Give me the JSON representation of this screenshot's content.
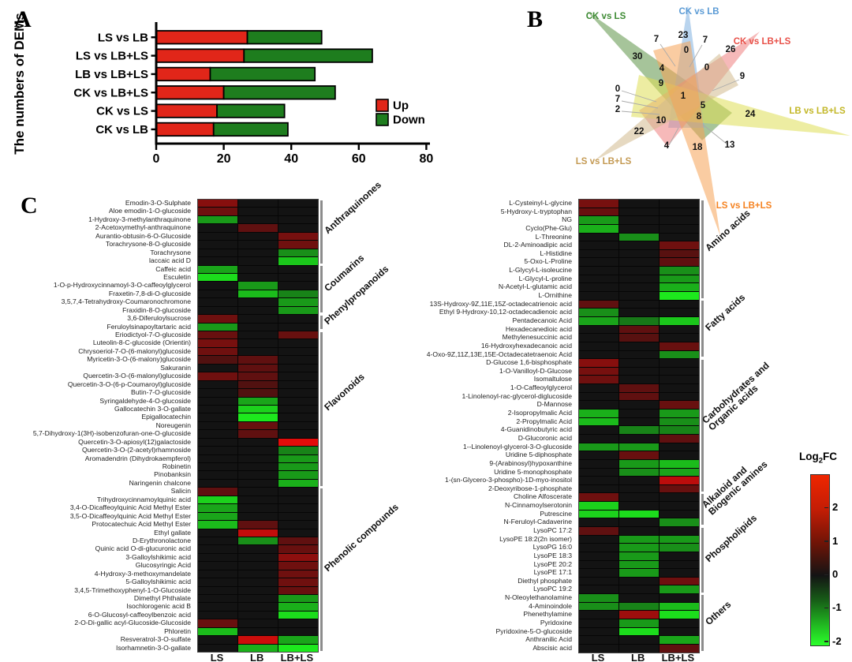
{
  "panels": {
    "a_letter": "A",
    "b_letter": "B",
    "c_letter": "C"
  },
  "chart_data": [
    {
      "type": "bar",
      "orientation": "horizontal-stacked",
      "ylabel": "The numbers of DEMs",
      "categories": [
        "LS vs LB",
        "LS vs LB+LS",
        "LB vs LB+LS",
        "CK vs LB+LS",
        "CK vs LS",
        "CK vs LB"
      ],
      "series": [
        {
          "name": "Up",
          "color": "#e12619",
          "values": [
            27,
            26,
            16,
            20,
            18,
            17
          ]
        },
        {
          "name": "Down",
          "color": "#1e7d1e",
          "values": [
            22,
            38,
            31,
            33,
            20,
            22
          ]
        }
      ],
      "xlim": [
        0,
        80
      ],
      "x_ticks": [
        0,
        20,
        40,
        60,
        80
      ],
      "legend_position": "right-inside"
    },
    {
      "type": "venn6-star",
      "sets": [
        {
          "name": "CK vs LS",
          "fill": "#5d9447",
          "label_color": "#3d8a33",
          "lx": 108,
          "ly": 24,
          "anchor": "middle"
        },
        {
          "name": "CK vs LB",
          "fill": "#7fb1e0",
          "label_color": "#5b9bd5",
          "lx": 226,
          "ly": 18,
          "anchor": "middle"
        },
        {
          "name": "CK vs LB+LS",
          "fill": "#ee8080",
          "label_color": "#e85048",
          "lx": 306,
          "ly": 56,
          "anchor": "middle"
        },
        {
          "name": "LB vs LB+LS",
          "fill": "#dede55",
          "label_color": "#c3b727",
          "lx": 376,
          "ly": 144,
          "anchor": "middle"
        },
        {
          "name": "LS vs LB+LS",
          "fill": "#d2ba8e",
          "label_color": "#c49a53",
          "lx": 105,
          "ly": 208,
          "anchor": "middle"
        },
        {
          "name": "LS vs LB+LS",
          "fill": "#f6a256",
          "label_color": "#f58220",
          "lx": 283,
          "ly": 264,
          "anchor": "middle"
        }
      ],
      "region_counts": [
        {
          "v": "7",
          "x": 172,
          "y": 53
        },
        {
          "v": "23",
          "x": 206,
          "y": 48
        },
        {
          "v": "7",
          "x": 234,
          "y": 54
        },
        {
          "v": "26",
          "x": 266,
          "y": 66
        },
        {
          "v": "30",
          "x": 148,
          "y": 75
        },
        {
          "v": "0",
          "x": 210,
          "y": 67
        },
        {
          "v": "4",
          "x": 179,
          "y": 90
        },
        {
          "v": "0",
          "x": 236,
          "y": 89
        },
        {
          "v": "9",
          "x": 178,
          "y": 109
        },
        {
          "v": "9",
          "x": 281,
          "y": 100
        },
        {
          "v": "0",
          "x": 123,
          "y": 116
        },
        {
          "v": "7",
          "x": 123,
          "y": 129
        },
        {
          "v": "2",
          "x": 123,
          "y": 142
        },
        {
          "v": "1",
          "x": 206,
          "y": 125
        },
        {
          "v": "5",
          "x": 231,
          "y": 137
        },
        {
          "v": "24",
          "x": 291,
          "y": 148
        },
        {
          "v": "8",
          "x": 226,
          "y": 151
        },
        {
          "v": "10",
          "x": 178,
          "y": 156
        },
        {
          "v": "22",
          "x": 150,
          "y": 170
        },
        {
          "v": "4",
          "x": 185,
          "y": 188
        },
        {
          "v": "18",
          "x": 224,
          "y": 190
        },
        {
          "v": "13",
          "x": 265,
          "y": 187
        }
      ]
    },
    {
      "type": "heatmap",
      "id": "left",
      "columns": [
        "LS",
        "LB",
        "LB+LS"
      ],
      "categories": [
        {
          "name": "Anthraquinones",
          "lines": [
            "Anthraquinones"
          ],
          "rows": [
            [
              "Emodin-3-O-Sulphate",
              1.5,
              0,
              0
            ],
            [
              "Aloe emodin-1-O-glucoside",
              1.2,
              0,
              0
            ],
            [
              "1-Hydroxy-3-methylanthraquinone",
              -1.2,
              0,
              0
            ],
            [
              "2-Acetoxymethyl-anthraquinone",
              0,
              1.0,
              0
            ],
            [
              "Aurantio-obtusin-6-O-Glucoside",
              0,
              0,
              1.3
            ],
            [
              "Torachrysone-8-O-glucoside",
              0,
              0,
              1.2
            ],
            [
              "Torachrysone",
              0,
              0,
              -1.1
            ],
            [
              "laccaic acid D",
              0,
              0,
              -1.6
            ]
          ]
        },
        {
          "name": "Coumarins",
          "lines": [
            "Coumarins"
          ],
          "rows": [
            [
              "Caffeic acid",
              -1.3,
              0,
              0
            ],
            [
              "Esculetin",
              -1.8,
              0,
              0
            ],
            [
              "1-O-p-Hydroxycinnamoyl-3-O-caffeoylglycerol",
              0,
              -1.2,
              0
            ],
            [
              "Fraxetin-7,8-di-O-glucoside",
              0,
              -1.5,
              -1.0
            ],
            [
              "3,5,7,4-Tetrahydroxy-Coumaronochromone",
              0,
              0,
              -1.2
            ],
            [
              "Fraxidin-8-O-glucoside",
              0,
              0,
              -1.2
            ]
          ]
        },
        {
          "name": "Phenylpropanoids",
          "lines": [
            "Phenylpropanoids"
          ],
          "rows": [
            [
              "3,6-Diferuloylsucrose",
              1.2,
              0,
              0
            ],
            [
              "Feruloylsinapoyltartaric acid",
              -1.2,
              0,
              0
            ]
          ]
        },
        {
          "name": "Flavonoids",
          "lines": [
            "Flavonoids"
          ],
          "rows": [
            [
              "Eriodictyol-7-O-glucoside",
              1.1,
              0,
              1.1
            ],
            [
              "Luteolin-8-C-glucoside (Orientin)",
              1.3,
              0,
              0
            ],
            [
              "Chrysoeriol-7-O-(6-malonyl)glucoside",
              1.2,
              0,
              0
            ],
            [
              "Myricetin-3-O-(6-malony)glucoside",
              0.8,
              1.0,
              0
            ],
            [
              "Sakuranin",
              0,
              1.0,
              0
            ],
            [
              "Quercetin-3-O-(6-malonyl)glucoside",
              1.2,
              1.0,
              0
            ],
            [
              "Quercetin-3-O-(6-p-Coumaroyl)glucoside",
              0,
              0.8,
              0
            ],
            [
              "Butin-7-O-glucoside",
              0,
              0.8,
              0
            ],
            [
              "Syringaldehyde-4-O-glucoside",
              0,
              -1.3,
              0
            ],
            [
              "Gallocatechin 3-O-gallate",
              0,
              -1.7,
              0
            ],
            [
              "Epigallocatechin",
              0,
              -1.9,
              0
            ],
            [
              "Noreugenin",
              0,
              1.1,
              0
            ],
            [
              "5,7-Dihydroxy-1(3H)-isobenzofuran-one-O-glucoside",
              0,
              1.0,
              0
            ],
            [
              "Quercetin-3-O-apiosyl(12)galactoside",
              0,
              0,
              2.7
            ],
            [
              "Quercetin-3-O-(2-acetyl)rhamnoside",
              0,
              0,
              -1.0
            ],
            [
              "Aromadendrin (Dihydrokaempferol)",
              0,
              0,
              -1.2
            ],
            [
              "Robinetin",
              0,
              0,
              -1.2
            ],
            [
              "Pinobanksin",
              0,
              0,
              -1.2
            ],
            [
              "Naringenin chalcone",
              0,
              0,
              -1.4
            ]
          ]
        },
        {
          "name": "Phenolic compounds",
          "lines": [
            "Phenolic compounds"
          ],
          "rows": [
            [
              "Salicin",
              1.0,
              0,
              0
            ],
            [
              "Trihydroxycinnamoylquinic acid",
              -1.7,
              0,
              0
            ],
            [
              "3,4-O-Dicaffeoylquinic Acid Methyl Ester",
              -1.3,
              0,
              0
            ],
            [
              "3,5-O-Dicaffeoylquinic Acid Methyl Ester",
              -1.3,
              0,
              0
            ],
            [
              "Protocatechuic Acid Methyl Ester",
              -1.5,
              1.0,
              0
            ],
            [
              "Ethyl gallate",
              0,
              2.3,
              0
            ],
            [
              "D-Erythronolactone",
              0,
              -1.1,
              1.0
            ],
            [
              "Quinic acid O-di-glucuronic acid",
              0,
              0,
              1.1
            ],
            [
              "3-Galloylshikimic acid",
              0,
              0,
              1.6
            ],
            [
              "Glucosyringic Acid",
              0,
              0,
              1.2
            ],
            [
              "4-Hydroxy-3-methoxymandelate",
              0,
              0,
              1.2
            ],
            [
              "5-Galloylshikimic acid",
              0,
              0,
              1.2
            ],
            [
              "3,4,5-Trimethoxyphenyl-1-O-Glucoside",
              0,
              0,
              1.1
            ],
            [
              "Dimethyl Phthalate",
              0,
              0,
              -1.2
            ],
            [
              "Isochlorogenic acid B",
              0,
              0,
              -1.4
            ],
            [
              "6-O-Glucosyl-caffeoylbenzoic acid",
              0,
              0,
              -1.8
            ],
            [
              "2-O-Di-gallic acyl-Glucoside-Glucoside",
              1.1,
              0,
              0
            ],
            [
              "Phloretin",
              -1.5,
              0,
              0
            ],
            [
              "Resveratrol-3-O-sulfate",
              0,
              2.4,
              -1.3
            ],
            [
              "Isorhamnetin-3-O-gallate",
              0,
              -1.4,
              -1.9
            ]
          ]
        }
      ]
    },
    {
      "type": "heatmap",
      "id": "right",
      "columns": [
        "LS",
        "LB",
        "LB+LS"
      ],
      "categories": [
        {
          "name": "Amino acids",
          "lines": [
            "Amino acids"
          ],
          "rows": [
            [
              "L-Cysteinyl-L-glycine",
              1.3,
              0,
              0
            ],
            [
              "5-Hydroxy-L-tryptophan",
              1.1,
              0,
              0
            ],
            [
              "NG",
              -1.2,
              0,
              0
            ],
            [
              "Cyclo(Phe-Glu)",
              -1.4,
              0,
              0
            ],
            [
              "L-Threonine",
              0,
              -1.1,
              0
            ],
            [
              "DL-2-Aminoadipic acid",
              0,
              0,
              1.2
            ],
            [
              "L-Histidine",
              0,
              0,
              0.9
            ],
            [
              "5-Oxo-L-Proline",
              0,
              0,
              1.0
            ],
            [
              "L-Glycyl-L-isoleucine",
              0,
              0,
              -1.1
            ],
            [
              "L-Glycyl-L-proline",
              0,
              0,
              -1.2
            ],
            [
              "N-Acetyl-L-glutamic acid",
              0,
              0,
              -1.4
            ],
            [
              "L-Ornithine",
              0,
              0,
              -1.9
            ]
          ]
        },
        {
          "name": "Fatty acids",
          "lines": [
            "Fatty acids"
          ],
          "rows": [
            [
              "13S-Hydroxy-9Z,11E,15Z-octadecatrienoic acid",
              1.0,
              0,
              0
            ],
            [
              "Ethyl 9-Hydroxy-10,12-octadecadienoic acid",
              -1.1,
              0,
              0
            ],
            [
              "Pentadecanoic Acid",
              -1.3,
              -0.9,
              -1.6
            ],
            [
              "Hexadecanedioic acid",
              0,
              1.0,
              0
            ],
            [
              "Methylenesuccinic acid",
              0,
              0.9,
              0
            ],
            [
              "16-Hydroxyhexadecanoic acid",
              0,
              0,
              1.1
            ],
            [
              "4-Oxo-9Z,11Z,13E,15E-Octadecatetraenoic Acid",
              0,
              0,
              -1.1
            ]
          ]
        },
        {
          "name": "Carbohydrates and Organic acids",
          "lines": [
            "Carbohydrates and",
            "Organic acids"
          ],
          "rows": [
            [
              "D-Glucose 1,6-bisphosphate",
              1.5,
              0,
              0
            ],
            [
              "1-O-Vanilloyl-D-Glucose",
              1.3,
              0,
              0
            ],
            [
              "Isomaltulose",
              1.2,
              0,
              0
            ],
            [
              "1-O-Caffeoylglycerol",
              0,
              1.0,
              0
            ],
            [
              "1-Linolenoyl-rac-glycerol-diglucoside",
              0,
              1.0,
              0
            ],
            [
              "D-Mannose",
              0,
              0,
              1.1
            ],
            [
              "2-Isopropylmalic Acid",
              -1.4,
              0,
              -1.2
            ],
            [
              "2-Propylmalic Acid",
              -1.5,
              0,
              -1.1
            ],
            [
              "4-Guanidinobutyric acid",
              0,
              -1.0,
              -1.0
            ],
            [
              "D-Glucoronic acid",
              0,
              0,
              1.0
            ],
            [
              "1--Linolenoyl-glycerol-3-O-glucoside",
              -1.2,
              -1.2,
              0
            ],
            [
              "Uridine 5-diphosphate",
              0,
              1.1,
              0
            ],
            [
              "9-(Arabinosyl)hypoxanthine",
              0,
              -1.2,
              -1.5
            ],
            [
              "Uridine 5-monophosphate",
              0,
              -1.1,
              -1.3
            ],
            [
              "1-(sn-Glycero-3-phospho)-1D-myo-inositol",
              0,
              0,
              2.2
            ],
            [
              "2-Deoxyribose-1-phosphate",
              0,
              0,
              1.1
            ]
          ]
        },
        {
          "name": "Alkaloid and Biogenic amines",
          "lines": [
            "Alkaloid and",
            "Biogenic amines"
          ],
          "rows": [
            [
              "Choline Alfoscerate",
              1.2,
              0,
              0
            ],
            [
              "N-Cinnamoylserotonin",
              -1.7,
              0,
              0
            ],
            [
              "Putrescine",
              -1.7,
              -1.8,
              0
            ],
            [
              "N-Feruloyl-Cadaverine",
              0,
              0,
              -1.1
            ]
          ]
        },
        {
          "name": "Phospholipids",
          "lines": [
            "Phospholipids"
          ],
          "rows": [
            [
              "LysoPC 17:2",
              1.0,
              0,
              0
            ],
            [
              "LysoPE 18:2(2n isomer)",
              0,
              -1.2,
              -1.2
            ],
            [
              "LysoPG 16:0",
              0,
              -1.2,
              -1.1
            ],
            [
              "LysoPE 18:3",
              0,
              -1.2,
              0
            ],
            [
              "LysoPE 20:2",
              0,
              -1.2,
              0
            ],
            [
              "LysoPE 17:1",
              0,
              -1.2,
              0
            ],
            [
              "Diethyl phosphate",
              0,
              0,
              1.2
            ],
            [
              "LysoPC 19:2",
              0,
              0,
              -1.2
            ]
          ]
        },
        {
          "name": "Others",
          "lines": [
            "Others"
          ],
          "rows": [
            [
              "N-Oleoylethanolamine",
              -1.1,
              0,
              0
            ],
            [
              "4-Aminoindole",
              -1.1,
              -1.0,
              -1.5
            ],
            [
              "Phenethylamine",
              0,
              1.8,
              -1.8
            ],
            [
              "Pyridoxine",
              0,
              -1.2,
              0
            ],
            [
              "Pyridoxine-5-O-glucoside",
              0,
              -1.8,
              0
            ],
            [
              "Anthranilic Acid",
              0,
              0,
              -1.3
            ],
            [
              "Abscisic acid",
              0,
              0,
              1.0
            ]
          ]
        }
      ]
    }
  ],
  "panelC": {
    "colorbar": {
      "title_main": "Log",
      "title_sub": "2",
      "title_end": "FC",
      "domain_top": 3,
      "domain_bottom": -2.1,
      "ticks": [
        2,
        1,
        0,
        -1,
        -2
      ]
    }
  }
}
